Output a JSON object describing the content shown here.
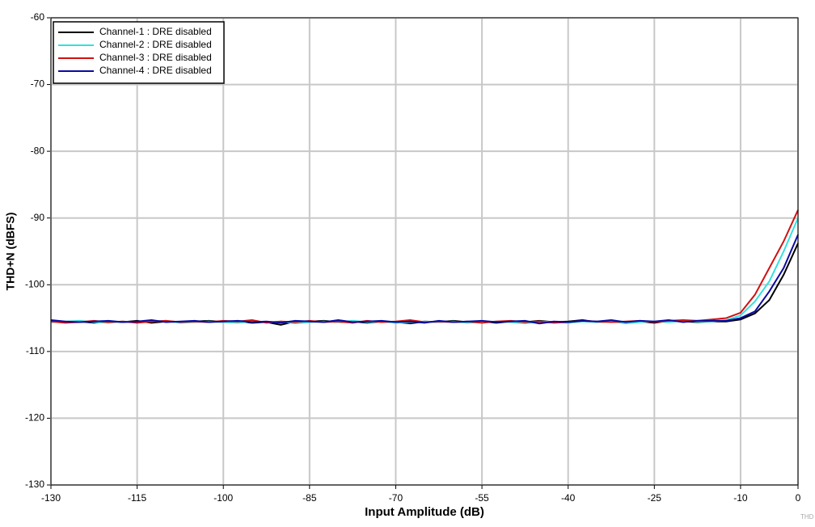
{
  "chart_data": {
    "type": "line",
    "xlabel": "Input Amplitude (dB)",
    "ylabel": "THD+N (dBFS)",
    "note": "THD",
    "x": [
      -130,
      -127.5,
      -125,
      -122.5,
      -120,
      -117.5,
      -115,
      -112.5,
      -110,
      -107.5,
      -105,
      -102.5,
      -100,
      -97.5,
      -95,
      -92.5,
      -90,
      -87.5,
      -85,
      -82.5,
      -80,
      -77.5,
      -75,
      -72.5,
      -70,
      -67.5,
      -65,
      -62.5,
      -60,
      -57.5,
      -55,
      -52.5,
      -50,
      -47.5,
      -45,
      -42.5,
      -40,
      -37.5,
      -35,
      -32.5,
      -30,
      -27.5,
      -25,
      -22.5,
      -20,
      -17.5,
      -15,
      -12.5,
      -10,
      -7.5,
      -5,
      -2.5,
      0
    ],
    "series": [
      {
        "name": "Channel-1 : DRE disabled",
        "color": "#000000",
        "values": [
          -105.4,
          -105.6,
          -105.5,
          -105.7,
          -105.5,
          -105.6,
          -105.4,
          -105.7,
          -105.5,
          -105.6,
          -105.5,
          -105.4,
          -105.6,
          -105.5,
          -105.7,
          -105.6,
          -106.0,
          -105.5,
          -105.5,
          -105.4,
          -105.6,
          -105.5,
          -105.7,
          -105.5,
          -105.6,
          -105.8,
          -105.5,
          -105.6,
          -105.4,
          -105.6,
          -105.5,
          -105.7,
          -105.5,
          -105.6,
          -105.4,
          -105.6,
          -105.5,
          -105.3,
          -105.6,
          -105.5,
          -105.6,
          -105.5,
          -105.7,
          -105.4,
          -105.5,
          -105.6,
          -105.5,
          -105.5,
          -105.2,
          -104.3,
          -102.3,
          -98.5,
          -93.8
        ]
      },
      {
        "name": "Channel-2 : DRE disabled",
        "color": "#33e0e0",
        "values": [
          -105.6,
          -105.5,
          -105.4,
          -105.6,
          -105.7,
          -105.5,
          -105.6,
          -105.5,
          -105.4,
          -105.7,
          -105.6,
          -105.5,
          -105.6,
          -105.7,
          -105.5,
          -105.6,
          -105.5,
          -105.8,
          -105.6,
          -105.5,
          -105.6,
          -105.4,
          -105.6,
          -105.5,
          -105.7,
          -105.6,
          -105.5,
          -105.6,
          -105.5,
          -105.7,
          -105.6,
          -105.5,
          -105.6,
          -105.8,
          -105.5,
          -105.6,
          -105.7,
          -105.5,
          -105.6,
          -105.5,
          -105.8,
          -105.6,
          -105.5,
          -105.6,
          -105.4,
          -105.5,
          -105.5,
          -105.3,
          -104.6,
          -102.5,
          -99.5,
          -95.0,
          -90.0
        ]
      },
      {
        "name": "Channel-3 : DRE disabled",
        "color": "#d01010",
        "values": [
          -105.5,
          -105.7,
          -105.6,
          -105.4,
          -105.6,
          -105.5,
          -105.7,
          -105.5,
          -105.4,
          -105.6,
          -105.5,
          -105.6,
          -105.4,
          -105.5,
          -105.3,
          -105.7,
          -105.5,
          -105.6,
          -105.4,
          -105.6,
          -105.5,
          -105.7,
          -105.4,
          -105.6,
          -105.5,
          -105.3,
          -105.6,
          -105.5,
          -105.6,
          -105.5,
          -105.7,
          -105.5,
          -105.4,
          -105.6,
          -105.5,
          -105.7,
          -105.6,
          -105.4,
          -105.5,
          -105.6,
          -105.5,
          -105.4,
          -105.6,
          -105.4,
          -105.3,
          -105.4,
          -105.2,
          -105.0,
          -104.2,
          -101.5,
          -97.5,
          -93.5,
          -88.8
        ]
      },
      {
        "name": "Channel-4 : DRE disabled",
        "color": "#0a0aa0",
        "values": [
          -105.3,
          -105.5,
          -105.6,
          -105.5,
          -105.4,
          -105.6,
          -105.5,
          -105.3,
          -105.6,
          -105.5,
          -105.4,
          -105.6,
          -105.5,
          -105.4,
          -105.6,
          -105.5,
          -105.7,
          -105.4,
          -105.5,
          -105.6,
          -105.3,
          -105.6,
          -105.5,
          -105.4,
          -105.6,
          -105.5,
          -105.7,
          -105.4,
          -105.6,
          -105.5,
          -105.4,
          -105.6,
          -105.5,
          -105.4,
          -105.8,
          -105.5,
          -105.6,
          -105.4,
          -105.5,
          -105.3,
          -105.6,
          -105.4,
          -105.5,
          -105.3,
          -105.6,
          -105.4,
          -105.4,
          -105.4,
          -105.0,
          -104.0,
          -101.0,
          -97.5,
          -92.5
        ]
      }
    ],
    "xlim": [
      -130,
      0
    ],
    "xticks": [
      -130,
      -115,
      -100,
      -85,
      -70,
      -55,
      -40,
      -25,
      -10,
      0
    ],
    "ylim": [
      -130,
      -60
    ],
    "yticks": [
      -130,
      -120,
      -110,
      -100,
      -90,
      -80,
      -70,
      -60
    ],
    "grid": true,
    "legend": "top-left"
  }
}
